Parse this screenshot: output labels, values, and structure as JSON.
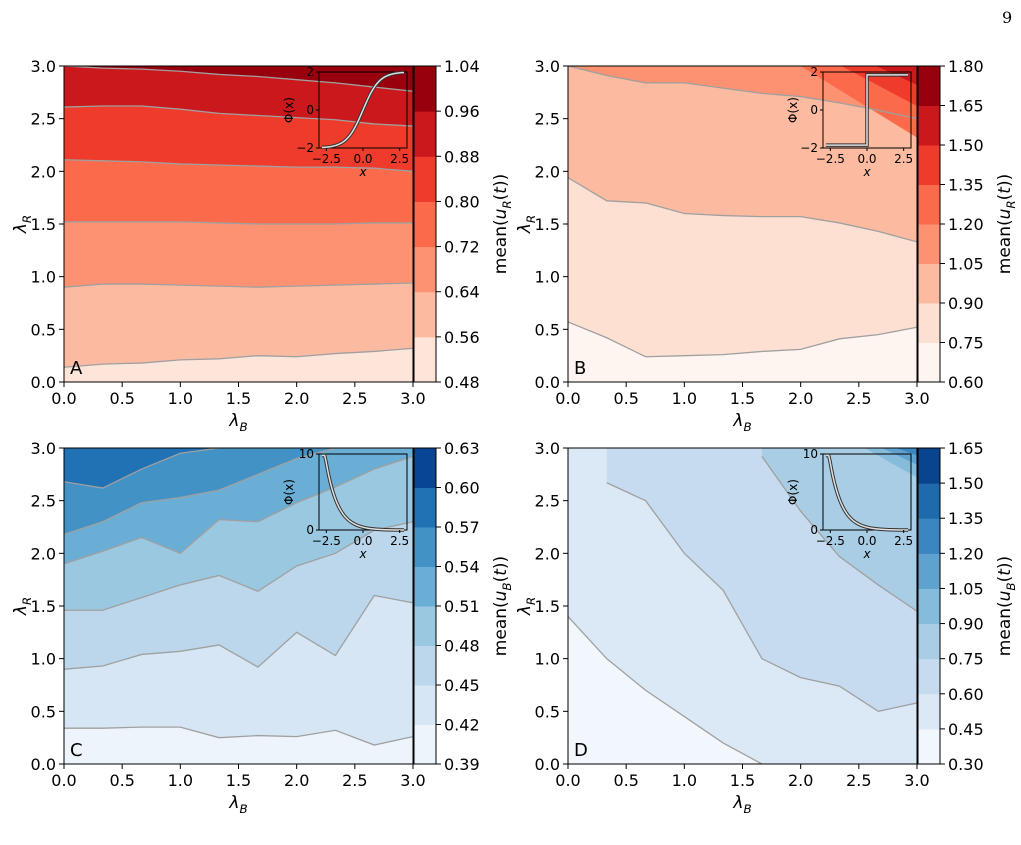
{
  "page": {
    "number": "9"
  },
  "chart_data": [
    {
      "panel": "A",
      "type": "contourf",
      "xlabel": "λ_B",
      "ylabel": "λ_R",
      "xlim": [
        0,
        3
      ],
      "ylim": [
        0,
        3
      ],
      "x_ticks": [
        "0.0",
        "0.5",
        "1.0",
        "1.5",
        "2.0",
        "2.5",
        "3.0"
      ],
      "y_ticks": [
        "0.0",
        "0.5",
        "1.0",
        "1.5",
        "2.0",
        "2.5",
        "3.0"
      ],
      "colormap": "Reds",
      "colorbar": {
        "label": "mean(u_R(t))",
        "levels": [
          "0.48",
          "0.56",
          "0.64",
          "0.72",
          "0.80",
          "0.88",
          "0.96",
          "1.04"
        ],
        "colors": [
          "#fee5d9",
          "#fcbba1",
          "#fc9272",
          "#fb6a4a",
          "#ef3b2c",
          "#cb181d",
          "#99000d"
        ]
      },
      "contours": {
        "x": [
          0,
          0.333,
          0.667,
          1.0,
          1.333,
          1.667,
          2.0,
          2.333,
          2.667,
          3.0
        ],
        "lines": [
          [
            0.14,
            0.17,
            0.18,
            0.21,
            0.22,
            0.25,
            0.24,
            0.27,
            0.29,
            0.32
          ],
          [
            0.9,
            0.93,
            0.93,
            0.92,
            0.91,
            0.9,
            0.91,
            0.92,
            0.93,
            0.94
          ],
          [
            1.52,
            1.52,
            1.52,
            1.52,
            1.51,
            1.5,
            1.5,
            1.5,
            1.51,
            1.51
          ],
          [
            2.11,
            2.1,
            2.09,
            2.07,
            2.06,
            2.05,
            2.04,
            2.04,
            2.03,
            2.0
          ],
          [
            2.61,
            2.62,
            2.62,
            2.59,
            2.55,
            2.53,
            2.51,
            2.49,
            2.45,
            2.43
          ],
          [
            3.0,
            2.98,
            2.97,
            2.95,
            2.92,
            2.9,
            2.87,
            2.84,
            2.8,
            2.76
          ]
        ]
      },
      "inset": {
        "xlabel": "x",
        "ylabel": "Φ(x)",
        "xlim": [
          -3,
          3
        ],
        "ylim": [
          -2,
          2
        ],
        "x_ticks": [
          "−2.5",
          "0.0",
          "2.5"
        ],
        "y_ticks": [
          "−2",
          "0",
          "2"
        ],
        "function": "tanh"
      }
    },
    {
      "panel": "B",
      "type": "contourf",
      "xlabel": "λ_B",
      "ylabel": "λ_R",
      "xlim": [
        0,
        3
      ],
      "ylim": [
        0,
        3
      ],
      "x_ticks": [
        "0.0",
        "0.5",
        "1.0",
        "1.5",
        "2.0",
        "2.5",
        "3.0"
      ],
      "y_ticks": [
        "0.0",
        "0.5",
        "1.0",
        "1.5",
        "2.0",
        "2.5",
        "3.0"
      ],
      "colormap": "Reds",
      "colorbar": {
        "label": "mean(u_R(t))",
        "levels": [
          "0.60",
          "0.75",
          "0.90",
          "1.05",
          "1.20",
          "1.35",
          "1.50",
          "1.65",
          "1.80"
        ],
        "colors": [
          "#fff5f0",
          "#fee0d2",
          "#fcbba1",
          "#fc9272",
          "#fb6a4a",
          "#ef3b2c",
          "#cb181d",
          "#99000d"
        ]
      },
      "contours": {
        "x": [
          0,
          0.333,
          0.667,
          1.0,
          1.333,
          1.667,
          2.0,
          2.333,
          2.667,
          3.0
        ],
        "lines": [
          [
            0.57,
            0.42,
            0.24,
            0.25,
            0.26,
            0.29,
            0.31,
            0.41,
            0.45,
            0.52
          ],
          [
            1.94,
            1.72,
            1.7,
            1.6,
            1.58,
            1.57,
            1.57,
            1.51,
            1.43,
            1.33
          ],
          [
            3.0,
            2.91,
            2.84,
            2.84,
            2.79,
            2.74,
            2.71,
            2.65,
            2.58,
            2.5
          ]
        ]
      },
      "inset": {
        "xlabel": "x",
        "ylabel": "Φ(x)",
        "xlim": [
          -3,
          3
        ],
        "ylim": [
          -2,
          2
        ],
        "x_ticks": [
          "−2.5",
          "0.0",
          "2.5"
        ],
        "y_ticks": [
          "−2",
          "0",
          "2"
        ],
        "function": "step"
      }
    },
    {
      "panel": "C",
      "type": "contourf",
      "xlabel": "λ_B",
      "ylabel": "λ_R",
      "xlim": [
        0,
        3
      ],
      "ylim": [
        0,
        3
      ],
      "x_ticks": [
        "0.0",
        "0.5",
        "1.0",
        "1.5",
        "2.0",
        "2.5",
        "3.0"
      ],
      "y_ticks": [
        "0.0",
        "0.5",
        "1.0",
        "1.5",
        "2.0",
        "2.5",
        "3.0"
      ],
      "colormap": "Blues",
      "colorbar": {
        "label": "mean(u_B(t))",
        "levels": [
          "0.39",
          "0.42",
          "0.45",
          "0.48",
          "0.51",
          "0.54",
          "0.57",
          "0.60",
          "0.63"
        ],
        "colors": [
          "#eef4fb",
          "#d6e6f4",
          "#bcd7eb",
          "#9ac8e0",
          "#6aaed6",
          "#4292c6",
          "#2171b5",
          "#084594"
        ]
      },
      "contours": {
        "x": [
          0,
          0.333,
          0.667,
          1.0,
          1.333,
          1.667,
          2.0,
          2.333,
          2.667,
          3.0
        ],
        "lines": [
          [
            0.34,
            0.34,
            0.35,
            0.35,
            0.25,
            0.27,
            0.26,
            0.32,
            0.18,
            0.26
          ],
          [
            0.9,
            0.93,
            1.04,
            1.07,
            1.13,
            0.92,
            1.25,
            1.03,
            1.6,
            1.53
          ],
          [
            1.46,
            1.46,
            1.58,
            1.7,
            1.79,
            1.64,
            1.88,
            2.0,
            2.22,
            2.3
          ],
          [
            1.9,
            2.02,
            2.15,
            2.0,
            2.32,
            2.3,
            2.48,
            2.63,
            2.8,
            2.92
          ],
          [
            2.18,
            2.3,
            2.48,
            2.53,
            2.6,
            2.75,
            2.9,
            3.0,
            3.0,
            3.0
          ],
          [
            2.68,
            2.62,
            2.8,
            2.95,
            3.0,
            3.0,
            3.0,
            3.0,
            3.0,
            3.0
          ]
        ]
      },
      "inset": {
        "xlabel": "x",
        "ylabel": "Φ(x)",
        "xlim": [
          -3,
          3
        ],
        "ylim": [
          0,
          10
        ],
        "x_ticks": [
          "−2.5",
          "0.0",
          "2.5"
        ],
        "y_ticks": [
          "0",
          "10"
        ],
        "function": "softplus"
      }
    },
    {
      "panel": "D",
      "type": "contourf",
      "xlabel": "λ_B",
      "ylabel": "λ_R",
      "xlim": [
        0,
        3
      ],
      "ylim": [
        0,
        3
      ],
      "x_ticks": [
        "0.0",
        "0.5",
        "1.0",
        "1.5",
        "2.0",
        "2.5",
        "3.0"
      ],
      "y_ticks": [
        "0.0",
        "0.5",
        "1.0",
        "1.5",
        "2.0",
        "2.5",
        "3.0"
      ],
      "colormap": "Blues",
      "colorbar": {
        "label": "mean(u_B(t))",
        "levels": [
          "0.30",
          "0.45",
          "0.60",
          "0.75",
          "0.90",
          "1.05",
          "1.20",
          "1.35",
          "1.50",
          "1.65"
        ],
        "colors": [
          "#f2f7fd",
          "#dbe9f6",
          "#c6dbef",
          "#a8cde4",
          "#85bcdc",
          "#5fa2d0",
          "#3b86c0",
          "#1f69ad",
          "#08458e"
        ]
      },
      "contours": {
        "x": [
          0,
          0.333,
          0.667,
          1.0,
          1.333,
          1.667,
          2.0,
          2.333,
          2.667,
          3.0
        ],
        "lines": [
          [
            1.4,
            1.0,
            0.7,
            0.45,
            0.2,
            0.0,
            null,
            null,
            null,
            null
          ],
          [
            null,
            2.67,
            2.5,
            2.0,
            1.65,
            1.0,
            0.82,
            0.74,
            0.5,
            0.58
          ],
          [
            null,
            null,
            null,
            null,
            null,
            2.92,
            2.4,
            1.97,
            1.7,
            1.45
          ]
        ]
      },
      "inset": {
        "xlabel": "x",
        "ylabel": "Φ(x)",
        "xlim": [
          -3,
          3
        ],
        "ylim": [
          0,
          10
        ],
        "x_ticks": [
          "−2.5",
          "0.0",
          "2.5"
        ],
        "y_ticks": [
          "0",
          "10"
        ],
        "function": "softplus"
      }
    }
  ]
}
